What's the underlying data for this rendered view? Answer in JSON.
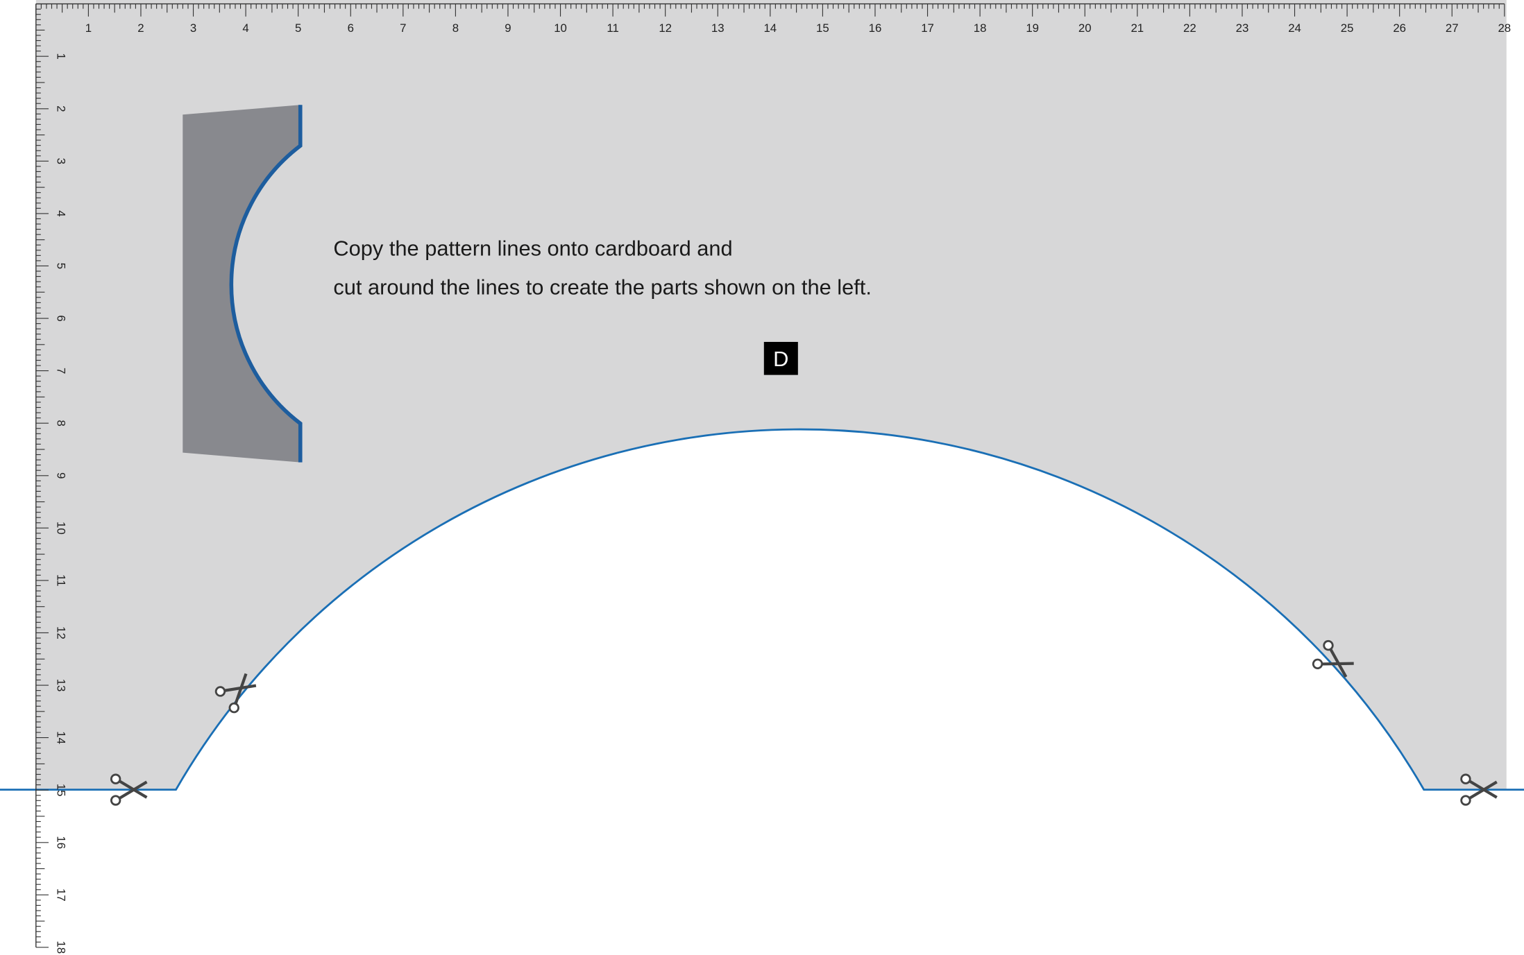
{
  "ruler": {
    "top": [
      1,
      2,
      3,
      4,
      5,
      6,
      7,
      8,
      9,
      10,
      11,
      12,
      13,
      14,
      15,
      16,
      17,
      18,
      19,
      20,
      21,
      22,
      23,
      24,
      25,
      26,
      27,
      28
    ],
    "left": [
      1,
      2,
      3,
      4,
      5,
      6,
      7,
      8,
      9,
      10,
      11,
      12,
      13,
      14,
      15,
      16,
      17,
      18
    ]
  },
  "instructions": [
    "Copy the pattern lines onto cardboard and",
    "cut around the lines to create the parts shown on the left."
  ],
  "part_label": "D"
}
